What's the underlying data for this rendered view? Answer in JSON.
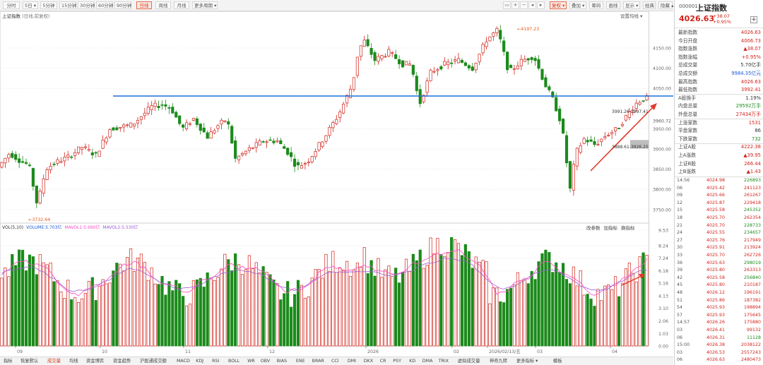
{
  "toolbar": {
    "periods": [
      {
        "label": "分时",
        "active": false
      },
      {
        "label": "5日 ▾",
        "active": false
      },
      {
        "label": "5分钟",
        "active": false
      },
      {
        "label": "15分钟",
        "active": false
      },
      {
        "label": "30分钟",
        "active": false
      },
      {
        "label": "60分钟",
        "active": false
      },
      {
        "label": "90分钟",
        "active": false
      },
      {
        "label": "日线",
        "active": true
      },
      {
        "label": "周线",
        "active": false
      },
      {
        "label": "月线",
        "active": false
      },
      {
        "label": "更多周期 ▾",
        "active": false
      }
    ],
    "right_tools": [
      "复权 ▾",
      "叠加 ▾",
      "筹码",
      "画线",
      "显示 ▾",
      "经典",
      "隐藏 ▴"
    ]
  },
  "chart": {
    "title": "上证指数",
    "subtitle": "(日线,前复权)",
    "settings_link": "设置均线 ▾",
    "price_ticks": [
      "4150.00",
      "4100.00",
      "4050.00",
      "3950.00",
      "3900.00",
      "3850.00",
      "3800.00",
      "3750.00"
    ],
    "highlight_tick": "3960.72",
    "annotations": {
      "low": "←3732.64",
      "high": "←4197.23",
      "range1": "3991.26-3997.41",
      "range2": "3888.61-3926.25"
    }
  },
  "volume": {
    "header": [
      "VOL(5,10)",
      "VOLUME:5.703亿",
      "MAVOL1:5.690亿",
      "MAVOL2:5.530亿"
    ],
    "tools": [
      "改参数",
      "加指标",
      "换指标"
    ],
    "ticks": [
      "9.53",
      "8.24",
      "7.24",
      "6.18",
      "5.16",
      "4.13",
      "3.10",
      "2.06",
      "1.03",
      "0.00"
    ]
  },
  "x_axis": {
    "labels": [
      "09",
      "10",
      "11",
      "12",
      "2026",
      "02",
      "2026/02/13/五",
      "03",
      "04"
    ]
  },
  "bottom_tabs": [
    {
      "label": "指标",
      "active": false
    },
    {
      "label": "恢复默认",
      "active": false
    },
    {
      "label": "成交量",
      "active": true
    },
    {
      "label": "均线",
      "active": false
    },
    {
      "label": "资金博弈",
      "active": false
    },
    {
      "label": "资金趋势",
      "active": false
    },
    {
      "label": "沪股通成交额",
      "active": false
    },
    {
      "label": "MACD",
      "active": false
    },
    {
      "label": "KDJ",
      "active": false
    },
    {
      "label": "RSI",
      "active": false
    },
    {
      "label": "BOLL",
      "active": false
    },
    {
      "label": "WR",
      "active": false
    },
    {
      "label": "OBV",
      "active": false
    },
    {
      "label": "BIAS",
      "active": false
    },
    {
      "label": "ENE",
      "active": false
    },
    {
      "label": "BRAR",
      "active": false
    },
    {
      "label": "CCI",
      "active": false
    },
    {
      "label": "DMI",
      "active": false
    },
    {
      "label": "DKX",
      "active": false
    },
    {
      "label": "CR",
      "active": false
    },
    {
      "label": "PSY",
      "active": false
    },
    {
      "label": "KD",
      "active": false
    },
    {
      "label": "DMA",
      "active": false
    },
    {
      "label": "TRIX",
      "active": false
    },
    {
      "label": "虚拟成交量",
      "active": false
    },
    {
      "label": "神奇九转",
      "active": false
    },
    {
      "label": "更多指标 ▾",
      "active": false
    },
    {
      "label": "模板",
      "active": false
    }
  ],
  "quote": {
    "code": "000001",
    "name": "上证指数",
    "price": "4026.63",
    "change": "+38.07",
    "change_pct": "+0.95%",
    "rows": [
      {
        "label": "最新指数",
        "value": "4026.63",
        "color": "red"
      },
      {
        "label": "今日开盘",
        "value": "4006.73",
        "color": "red"
      },
      {
        "label": "指数涨跌",
        "value": "▲38.07",
        "color": "red"
      },
      {
        "label": "指数涨幅",
        "value": "+0.95%",
        "color": "red"
      },
      {
        "label": "总成交量",
        "value": "5.70亿手",
        "color": ""
      },
      {
        "label": "总成交额",
        "value": "9984.35亿元",
        "color": "blue"
      },
      {
        "label": "最高指数",
        "value": "4026.63",
        "color": "red"
      },
      {
        "label": "最低指数",
        "value": "3992.41",
        "color": "red"
      },
      {
        "label": "A股换手",
        "value": "1.19%",
        "color": ""
      },
      {
        "label": "内盘总量",
        "value": "29592万手",
        "color": "green"
      },
      {
        "label": "外盘总量",
        "value": "27434万手",
        "color": "red"
      },
      {
        "label": "上涨家数",
        "value": "1531",
        "color": "red"
      },
      {
        "label": "平盘家数",
        "value": "86",
        "color": ""
      },
      {
        "label": "下跌家数",
        "value": "732",
        "color": "green"
      },
      {
        "label": "上证A股",
        "value": "4222.38",
        "color": "red"
      },
      {
        "label": "上A涨跌",
        "value": "▲39.95",
        "color": "red"
      },
      {
        "label": "上证B股",
        "value": "266.44",
        "color": "red"
      },
      {
        "label": "上B涨跌",
        "value": "▲1.43",
        "color": "red"
      }
    ],
    "ticks": [
      {
        "time": "14:56",
        "price": "4024.98",
        "vol": "226893",
        "color": "green"
      },
      {
        "time": "06",
        "price": "4025.42",
        "vol": "241123",
        "color": "red"
      },
      {
        "time": "09",
        "price": "4025.66",
        "vol": "261267",
        "color": "red"
      },
      {
        "time": "12",
        "price": "4025.87",
        "vol": "229418",
        "color": "red"
      },
      {
        "time": "15",
        "price": "4025.58",
        "vol": "245352",
        "color": "green"
      },
      {
        "time": "18",
        "price": "4025.70",
        "vol": "262354",
        "color": "red"
      },
      {
        "time": "21",
        "price": "4025.70",
        "vol": "228733",
        "color": "green"
      },
      {
        "time": "24",
        "price": "4025.55",
        "vol": "234657",
        "color": "green"
      },
      {
        "time": "27",
        "price": "4025.76",
        "vol": "217949",
        "color": "red"
      },
      {
        "time": "30",
        "price": "4025.91",
        "vol": "213924",
        "color": "red"
      },
      {
        "time": "33",
        "price": "4025.70",
        "vol": "262726",
        "color": "red"
      },
      {
        "time": "36",
        "price": "4025.63",
        "vol": "298019",
        "color": "green"
      },
      {
        "time": "39",
        "price": "4025.80",
        "vol": "263313",
        "color": "red"
      },
      {
        "time": "42",
        "price": "4025.58",
        "vol": "256840",
        "color": "green"
      },
      {
        "time": "45",
        "price": "4025.80",
        "vol": "210187",
        "color": "red"
      },
      {
        "time": "48",
        "price": "4026.12",
        "vol": "196191",
        "color": "red"
      },
      {
        "time": "51",
        "price": "4025.86",
        "vol": "187382",
        "color": "red"
      },
      {
        "time": "54",
        "price": "4025.93",
        "vol": "198894",
        "color": "red"
      },
      {
        "time": "57",
        "price": "4025.93",
        "vol": "175645",
        "color": "red"
      },
      {
        "time": "14:57",
        "price": "4026.26",
        "vol": "175880",
        "color": "red"
      },
      {
        "time": "03",
        "price": "4026.41",
        "vol": "99132",
        "color": "red"
      },
      {
        "time": "06",
        "price": "4026.31",
        "vol": "11128",
        "color": "green"
      },
      {
        "time": "15:00",
        "price": "4026.38",
        "vol": "2038122",
        "color": "red"
      },
      {
        "time": "03",
        "price": "4026.53",
        "vol": "2557243",
        "color": "red"
      },
      {
        "time": "06",
        "price": "4026.63",
        "vol": "2480473",
        "color": "red"
      }
    ]
  },
  "colors": {
    "up": "#d0241c",
    "down": "#1b8a1b",
    "support_line": "#1e6fd9",
    "trend_arrow": "#e03a2a",
    "ma1": "#ff48c8",
    "ma2": "#9b5bd6"
  }
}
